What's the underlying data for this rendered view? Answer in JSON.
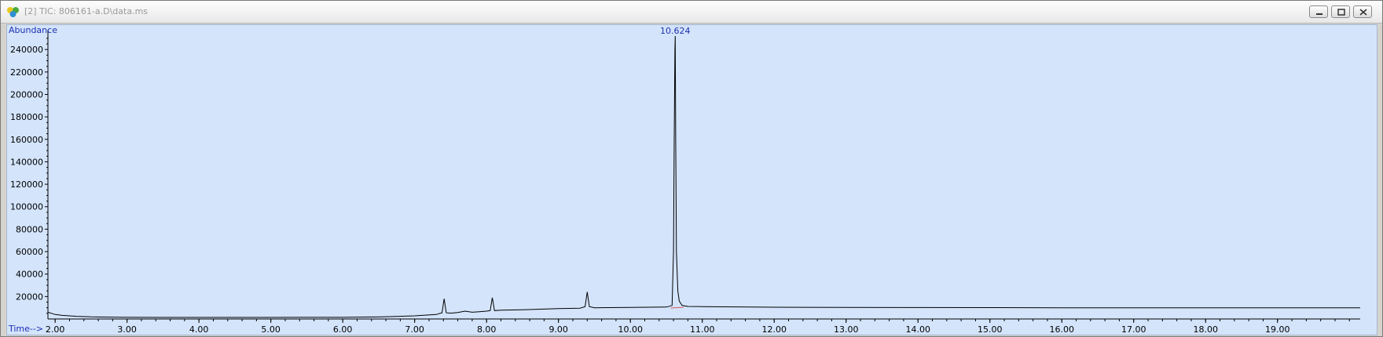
{
  "window": {
    "title": "[2] TIC: 806161-a.D\\data.ms",
    "icon": "chemstation-app-icon",
    "buttons": [
      "minimize-icon",
      "restore-icon",
      "close-icon"
    ]
  },
  "colors": {
    "plot_background": "#d3e4fb",
    "trace": "#000000",
    "labels": "#1f2fb0",
    "baseline_marker": "#e05b5b"
  },
  "chart_data": {
    "type": "line",
    "ylabel": "Abundance",
    "xlabel": "Time-->",
    "xlim": [
      1.9,
      20.15
    ],
    "ylim": [
      0,
      252000
    ],
    "x_ticks": [
      "2.00",
      "3.00",
      "4.00",
      "5.00",
      "6.00",
      "7.00",
      "8.00",
      "9.00",
      "10.00",
      "11.00",
      "12.00",
      "13.00",
      "14.00",
      "15.00",
      "16.00",
      "17.00",
      "18.00",
      "19.00"
    ],
    "y_ticks": [
      "20000",
      "40000",
      "60000",
      "80000",
      "100000",
      "120000",
      "140000",
      "160000",
      "180000",
      "200000",
      "220000",
      "240000"
    ],
    "peak_labels": [
      {
        "x": 10.624,
        "y": 252000,
        "text": "10.624"
      }
    ],
    "series": [
      {
        "x": [
          1.9,
          1.95,
          2.0,
          2.1,
          2.3,
          2.5,
          3.0,
          3.5,
          4.0,
          4.5,
          5.0,
          5.5,
          6.0,
          6.5,
          7.0,
          7.3,
          7.38,
          7.41,
          7.44,
          7.5,
          7.6,
          7.7,
          7.8,
          7.9,
          8.0,
          8.05,
          8.08,
          8.11,
          8.2,
          8.5,
          9.0,
          9.3,
          9.37,
          9.4,
          9.43,
          9.5,
          10.0,
          10.5,
          10.58,
          10.6,
          10.61,
          10.62,
          10.624,
          10.63,
          10.64,
          10.66,
          10.68,
          10.72,
          10.8,
          11.0,
          12.0,
          13.0,
          14.0,
          15.0,
          16.0,
          17.0,
          18.0,
          19.0,
          20.0,
          20.15
        ],
        "y": [
          6000,
          5000,
          4000,
          3200,
          2400,
          1900,
          1500,
          1400,
          1400,
          1400,
          1400,
          1500,
          1500,
          1800,
          2800,
          4000,
          5500,
          18000,
          5500,
          5200,
          5800,
          7000,
          6000,
          6500,
          7000,
          7500,
          19000,
          7500,
          7800,
          8200,
          9200,
          9600,
          11000,
          24000,
          11000,
          10000,
          10300,
          10600,
          12000,
          60000,
          160000,
          240000,
          252000,
          160000,
          60000,
          25000,
          16000,
          12000,
          11200,
          11000,
          10500,
          10300,
          10200,
          10100,
          10000,
          10000,
          10000,
          9900,
          9900,
          9900
        ]
      }
    ]
  }
}
